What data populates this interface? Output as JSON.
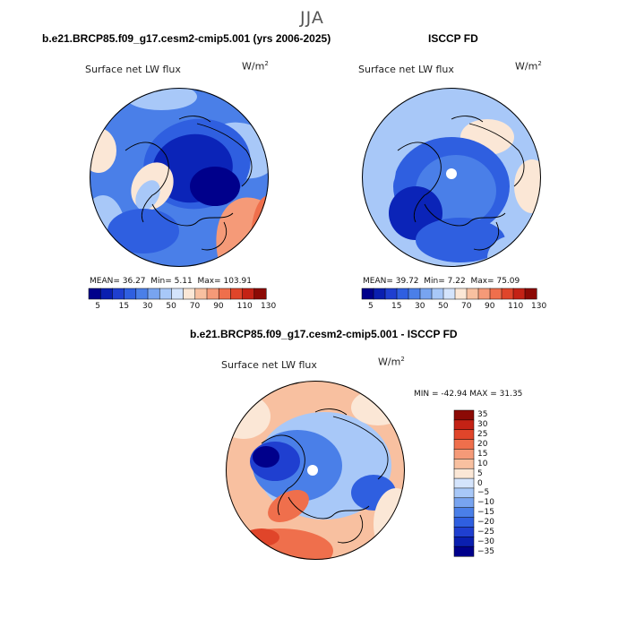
{
  "season": "JJA",
  "panels": [
    {
      "title": "b.e21.BRCP85.f09_g17.cesm2-cmip5.001 (yrs 2006-2025)",
      "variable": "Surface net LW flux",
      "units_base": "W/m",
      "units_exp": "2",
      "stats": {
        "mean_label": "MEAN=",
        "mean": "36.27",
        "min_label": "Min=",
        "min": "5.11",
        "max_label": "Max=",
        "max": "103.91"
      },
      "style": "model"
    },
    {
      "title": "ISCCP FD",
      "variable": "Surface net LW flux",
      "units_base": "W/m",
      "units_exp": "2",
      "stats": {
        "mean_label": "MEAN=",
        "mean": "39.72",
        "min_label": "Min=",
        "min": "7.22",
        "max_label": "Max=",
        "max": "75.09"
      },
      "style": "obs"
    }
  ],
  "abs_colorbar": {
    "colors": [
      "#00008b",
      "#0a1fb0",
      "#1f3fd0",
      "#2f5fe0",
      "#4a7fe8",
      "#78a4f0",
      "#a8c8f8",
      "#d4e4fc",
      "#fbe7d6",
      "#f8c0a0",
      "#f59a78",
      "#ef6f4c",
      "#e0452a",
      "#c42215",
      "#8c0a05"
    ],
    "tick_labels": [
      "5",
      "15",
      "30",
      "50",
      "70",
      "90",
      "110",
      "130"
    ]
  },
  "diff": {
    "title": "b.e21.BRCP85.f09_g17.cesm2-cmip5.001 - ISCCP FD",
    "variable": "Surface net LW flux",
    "units_base": "W/m",
    "units_exp": "2",
    "minmax": "MIN = -42.94  MAX =  31.35",
    "colorbar": {
      "colors": [
        "#8c0a05",
        "#c42215",
        "#e0452a",
        "#ef6f4c",
        "#f59a78",
        "#f8c0a0",
        "#fbe7d6",
        "#d4e4fc",
        "#a8c8f8",
        "#78a4f0",
        "#4a7fe8",
        "#2f5fe0",
        "#1f3fd0",
        "#0a1fb0",
        "#00008b"
      ],
      "tick_labels": [
        "35",
        "30",
        "25",
        "20",
        "15",
        "10",
        "5",
        "0",
        "−5",
        "−10",
        "−15",
        "−20",
        "−25",
        "−30",
        "−35"
      ]
    }
  },
  "colors": {
    "deep_blue": "#0b24b8",
    "blue": "#2f5fe0",
    "mid_blue": "#4a7fe8",
    "light_blue": "#a8c8f8",
    "pale": "#fbe7d6",
    "orange": "#ef6f4c",
    "red": "#c42215"
  }
}
